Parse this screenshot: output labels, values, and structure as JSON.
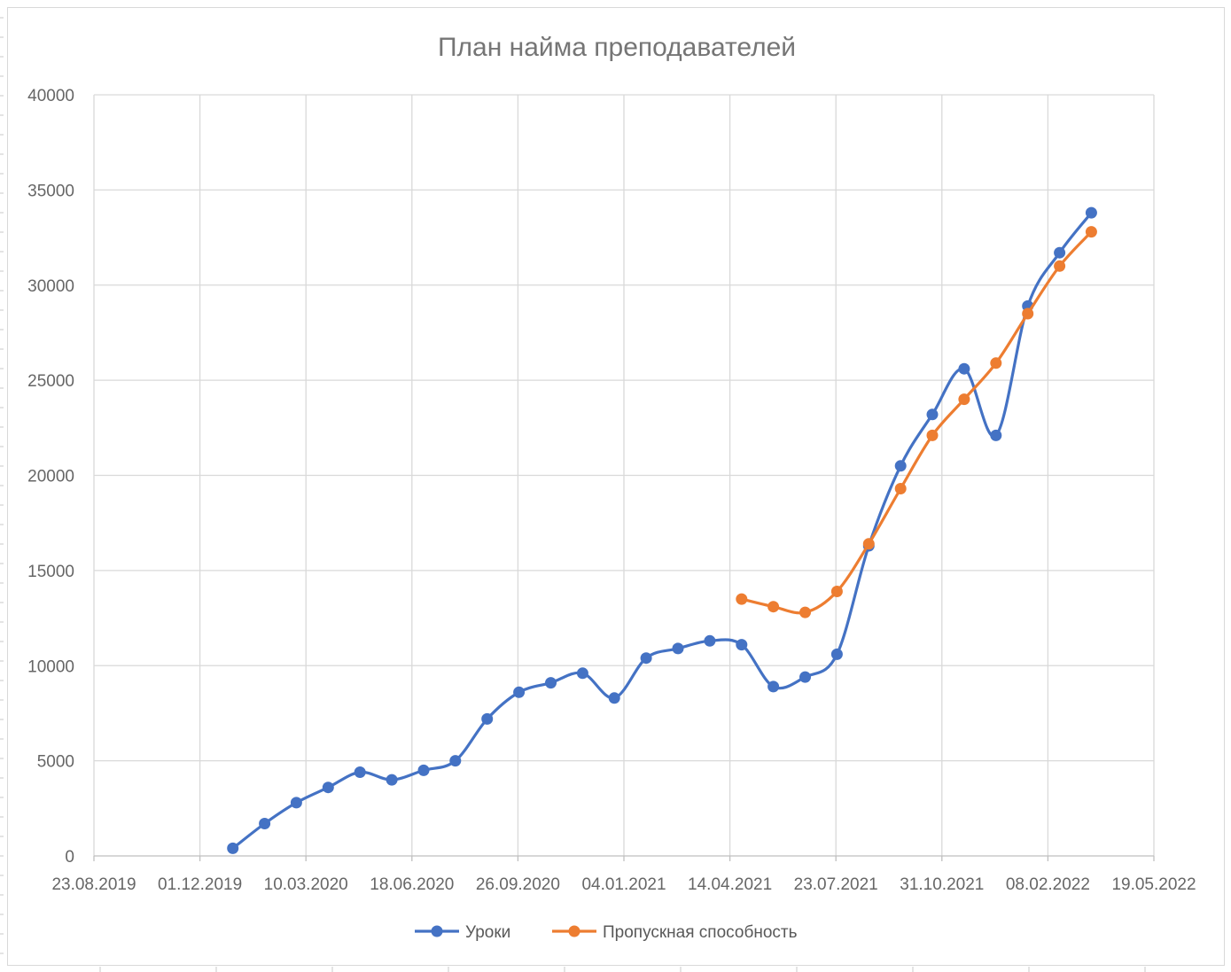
{
  "chart_data": {
    "type": "line",
    "title": "План найма преподавателей",
    "xlabel": "",
    "ylabel": "",
    "x_ticks": [
      "23.08.2019",
      "01.12.2019",
      "10.03.2020",
      "18.06.2020",
      "26.09.2020",
      "04.01.2021",
      "14.04.2021",
      "23.07.2021",
      "31.10.2021",
      "08.02.2022",
      "19.05.2022"
    ],
    "y_ticks": [
      "0",
      "5000",
      "10000",
      "15000",
      "20000",
      "25000",
      "30000",
      "35000",
      "40000"
    ],
    "ylim": [
      0,
      40000
    ],
    "xlim": [
      "2019-08-23",
      "2022-05-19"
    ],
    "grid": true,
    "legend_position": "bottom",
    "series": [
      {
        "name": "Уроки",
        "color": "#4472C4",
        "points": [
          [
            "2020-01-01",
            400
          ],
          [
            "2020-01-31",
            1700
          ],
          [
            "2020-03-01",
            2800
          ],
          [
            "2020-03-31",
            3600
          ],
          [
            "2020-04-30",
            4400
          ],
          [
            "2020-05-30",
            4000
          ],
          [
            "2020-06-29",
            4500
          ],
          [
            "2020-07-29",
            5000
          ],
          [
            "2020-08-28",
            7200
          ],
          [
            "2020-09-27",
            8600
          ],
          [
            "2020-10-27",
            9100
          ],
          [
            "2020-11-26",
            9600
          ],
          [
            "2020-12-26",
            8300
          ],
          [
            "2021-01-25",
            10400
          ],
          [
            "2021-02-24",
            10900
          ],
          [
            "2021-03-26",
            11300
          ],
          [
            "2021-04-25",
            11100
          ],
          [
            "2021-05-25",
            8900
          ],
          [
            "2021-06-24",
            9400
          ],
          [
            "2021-07-24",
            10600
          ],
          [
            "2021-08-23",
            16300
          ],
          [
            "2021-09-22",
            20500
          ],
          [
            "2021-10-22",
            23200
          ],
          [
            "2021-11-21",
            25600
          ],
          [
            "2021-12-21",
            22100
          ],
          [
            "2022-01-20",
            28900
          ],
          [
            "2022-02-19",
            31700
          ],
          [
            "2022-03-21",
            33800
          ]
        ]
      },
      {
        "name": "Пропускная способность",
        "color": "#ED7D31",
        "points": [
          [
            "2021-04-25",
            13500
          ],
          [
            "2021-05-25",
            13100
          ],
          [
            "2021-06-24",
            12800
          ],
          [
            "2021-07-24",
            13900
          ],
          [
            "2021-08-23",
            16400
          ],
          [
            "2021-09-22",
            19300
          ],
          [
            "2021-10-22",
            22100
          ],
          [
            "2021-11-21",
            24000
          ],
          [
            "2021-12-21",
            25900
          ],
          [
            "2022-01-20",
            28500
          ],
          [
            "2022-02-19",
            31000
          ],
          [
            "2022-03-21",
            32800
          ]
        ]
      }
    ]
  }
}
